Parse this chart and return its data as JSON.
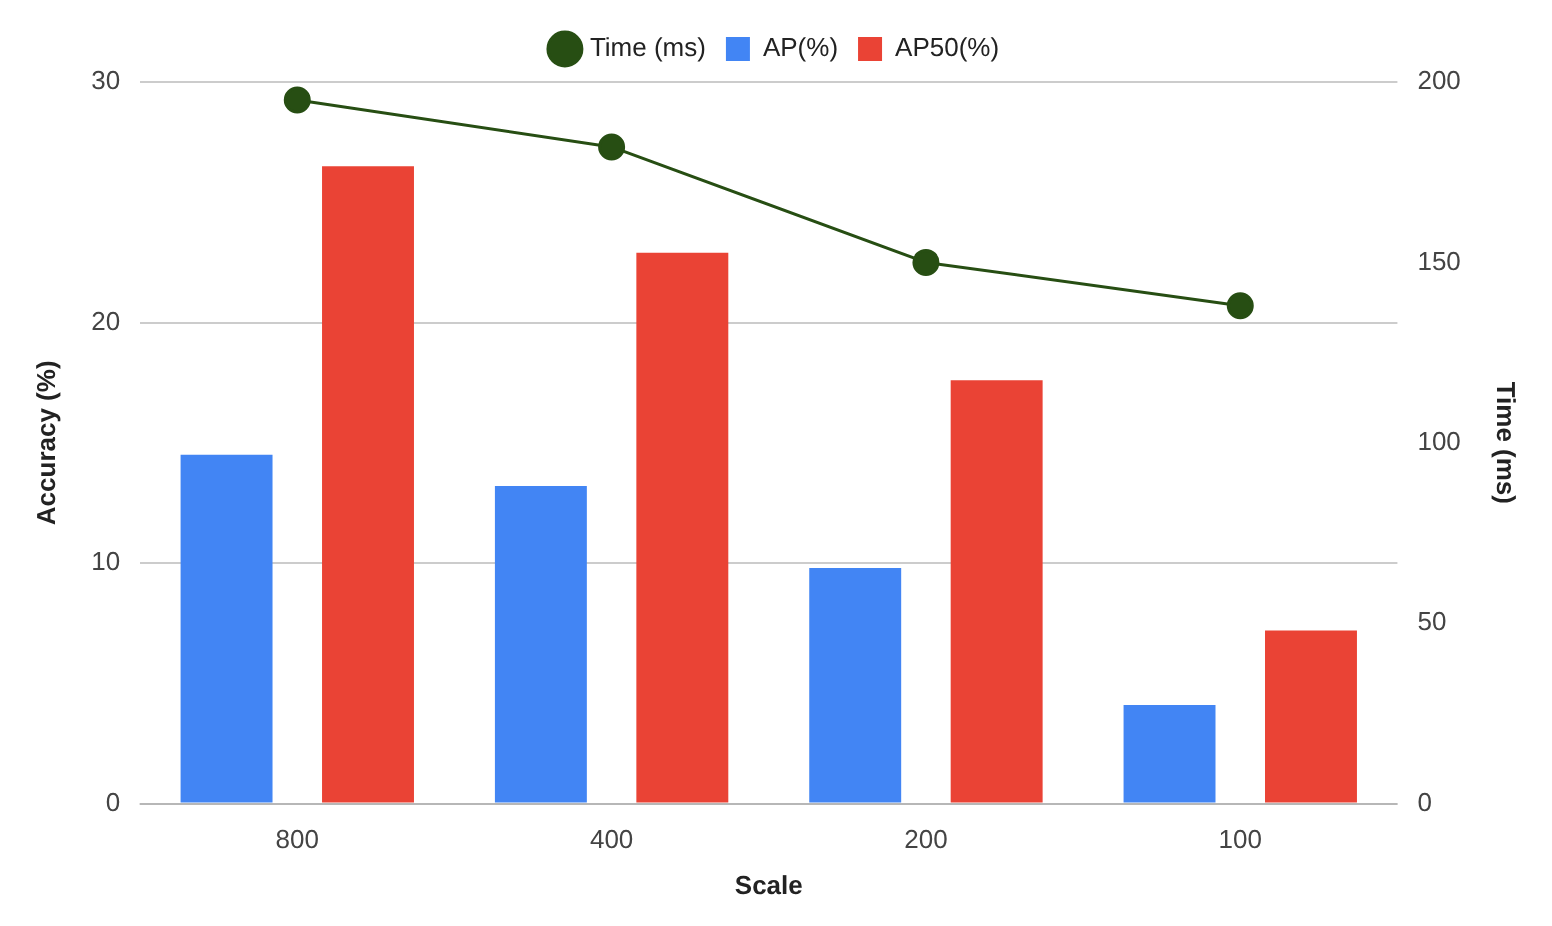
{
  "chart_data": {
    "type": "bar",
    "xlabel": "Scale",
    "ylabel": "Accuracy (%)",
    "y2label": "Time (ms)",
    "categories": [
      "800",
      "400",
      "200",
      "100"
    ],
    "series": [
      {
        "name": "AP(%)",
        "color": "#4285f4",
        "values": [
          14.5,
          13.2,
          9.8,
          4.1
        ]
      },
      {
        "name": "AP50(%)",
        "color": "#ea4335",
        "values": [
          26.5,
          22.9,
          17.6,
          7.2
        ]
      },
      {
        "name": "Time (ms)",
        "color": "#274e13",
        "type": "line",
        "axis": "y2",
        "values": [
          195,
          182,
          150,
          138
        ]
      }
    ],
    "ylim": [
      0,
      30
    ],
    "yticks": [
      0,
      10,
      20,
      30
    ],
    "y2lim": [
      0,
      200
    ],
    "y2ticks": [
      0,
      50,
      100,
      150,
      200
    ],
    "grid": "y",
    "legend": "top",
    "marker": "circle",
    "line_style": "solid"
  }
}
